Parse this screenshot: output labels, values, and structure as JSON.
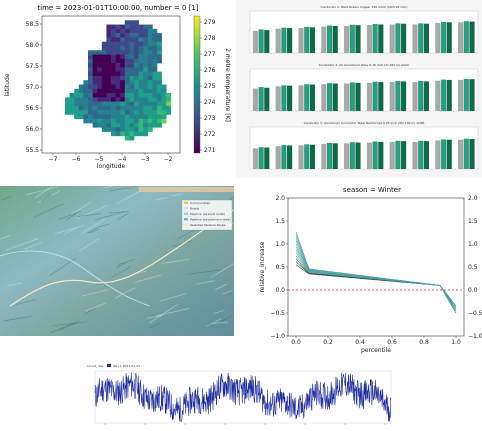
{
  "tiles": {
    "heatmap": {
      "title": "time = 2023-01-01T10:00:00, number = 0 [1]",
      "xlabel": "longitude",
      "ylabel": "latitude",
      "colorbar_label": "2 metre temperature [K]",
      "x_ticks": [
        "−7",
        "−6",
        "−5",
        "−4",
        "−3",
        "−2"
      ],
      "y_ticks": [
        "58.5",
        "58.0",
        "57.5",
        "57.0",
        "56.5",
        "56.0",
        "55.5"
      ],
      "cbar_ticks": [
        "279",
        "278",
        "277",
        "276",
        "275",
        "274",
        "273",
        "272",
        "271"
      ]
    },
    "bars": {
      "panel_titles": [
        "Conductor 1: Hard Drawn Copper 150 mm2 (19/3.22 mm)",
        "Conductor 2: All Aluminium Alloy 0.15 inch (7/.193 in) AAAC",
        "Conductor 3: Aluminium Conductor Steel Reinforced 0.25 inch (30/.102 in) ACSR"
      ]
    },
    "terrain": {
      "legend": [
        "Communities",
        "Roads",
        "Pipeline (as-built route)",
        "Pipeline (as-planned route)",
        "Selected Pipeline Route"
      ]
    },
    "lines": {
      "title": "season = Winter",
      "xlabel": "percentile",
      "ylabel": "relative_increase",
      "x_ticks": [
        "0.0",
        "0.2",
        "0.4",
        "0.6",
        "0.8",
        "1.0"
      ],
      "y_ticks": [
        "2.0",
        "1.5",
        "1.0",
        "0.5",
        "0.0",
        "−0.5",
        "−1.0"
      ],
      "right_ticks": [
        "2.0",
        "1.5",
        "1.0",
        "0.5",
        "0.0",
        "−0.5",
        "−1.0"
      ]
    },
    "timeseries": {
      "title": "circuit_mw",
      "legend": "G0+1 2023-01-01"
    }
  },
  "colors": {
    "viridis_low": "#440154",
    "viridis_high": "#fde725",
    "bar_gray": "#a8a8a8",
    "bar_teal": "#2a9d7f",
    "bar_green": "#0e6b4a",
    "line_dark": "#2b3b3b",
    "line_teal": "#4a9fa0",
    "zero_line": "#d62728",
    "ts_blue": "#1f2fa0"
  },
  "chart_data": [
    {
      "type": "heatmap",
      "title": "time = 2023-01-01T10:00:00, number = 0 [1]",
      "xlabel": "longitude",
      "ylabel": "latitude",
      "xlim": [
        -7.5,
        -1.5
      ],
      "ylim": [
        55.4,
        58.6
      ],
      "colorbar": {
        "label": "2 metre temperature [K]",
        "range": [
          271,
          279.5
        ]
      }
    },
    {
      "type": "bar",
      "panels": [
        {
          "title": "Conductor 1: Hard Drawn Copper 150 mm2 (19/3.22 mm)",
          "series": [
            {
              "values": [
                62,
                68,
                70,
                74,
                76,
                78,
                80,
                80,
                84,
                86
              ]
            },
            {
              "values": [
                66,
                71,
                73,
                77,
                79,
                81,
                83,
                83,
                87,
                89
              ]
            },
            {
              "values": [
                64,
                70,
                72,
                76,
                78,
                80,
                82,
                82,
                86,
                88
              ]
            }
          ]
        },
        {
          "title": "Conductor 2: All Aluminium Alloy 0.15 inch (7/.193 in) AAAC",
          "series": [
            {
              "values": [
                63,
                69,
                72,
                75,
                77,
                79,
                81,
                81,
                85,
                87
              ]
            },
            {
              "values": [
                67,
                72,
                75,
                78,
                80,
                82,
                84,
                84,
                88,
                90
              ]
            },
            {
              "values": [
                65,
                71,
                74,
                77,
                79,
                81,
                83,
                83,
                87,
                89
              ]
            }
          ]
        },
        {
          "title": "Conductor 3: Aluminium Conductor Steel Reinforced 0.25 inch (30/.102 in) ACSR",
          "series": [
            {
              "values": [
                58,
                64,
                66,
                70,
                72,
                74,
                76,
                76,
                80,
                82
              ]
            },
            {
              "values": [
                61,
                67,
                69,
                73,
                75,
                77,
                79,
                79,
                83,
                85
              ]
            },
            {
              "values": [
                60,
                66,
                68,
                72,
                74,
                76,
                78,
                78,
                82,
                84
              ]
            }
          ]
        }
      ]
    },
    {
      "type": "line",
      "title": "season = Winter",
      "xlabel": "percentile",
      "ylabel": "relative_increase",
      "xlim": [
        -0.05,
        1.05
      ],
      "ylim": [
        -1.0,
        2.0
      ],
      "reference_line": 0.0,
      "series_count": 12
    },
    {
      "type": "line",
      "title": "circuit_mw",
      "legend": [
        "G0+1 2023-01-01"
      ]
    }
  ]
}
